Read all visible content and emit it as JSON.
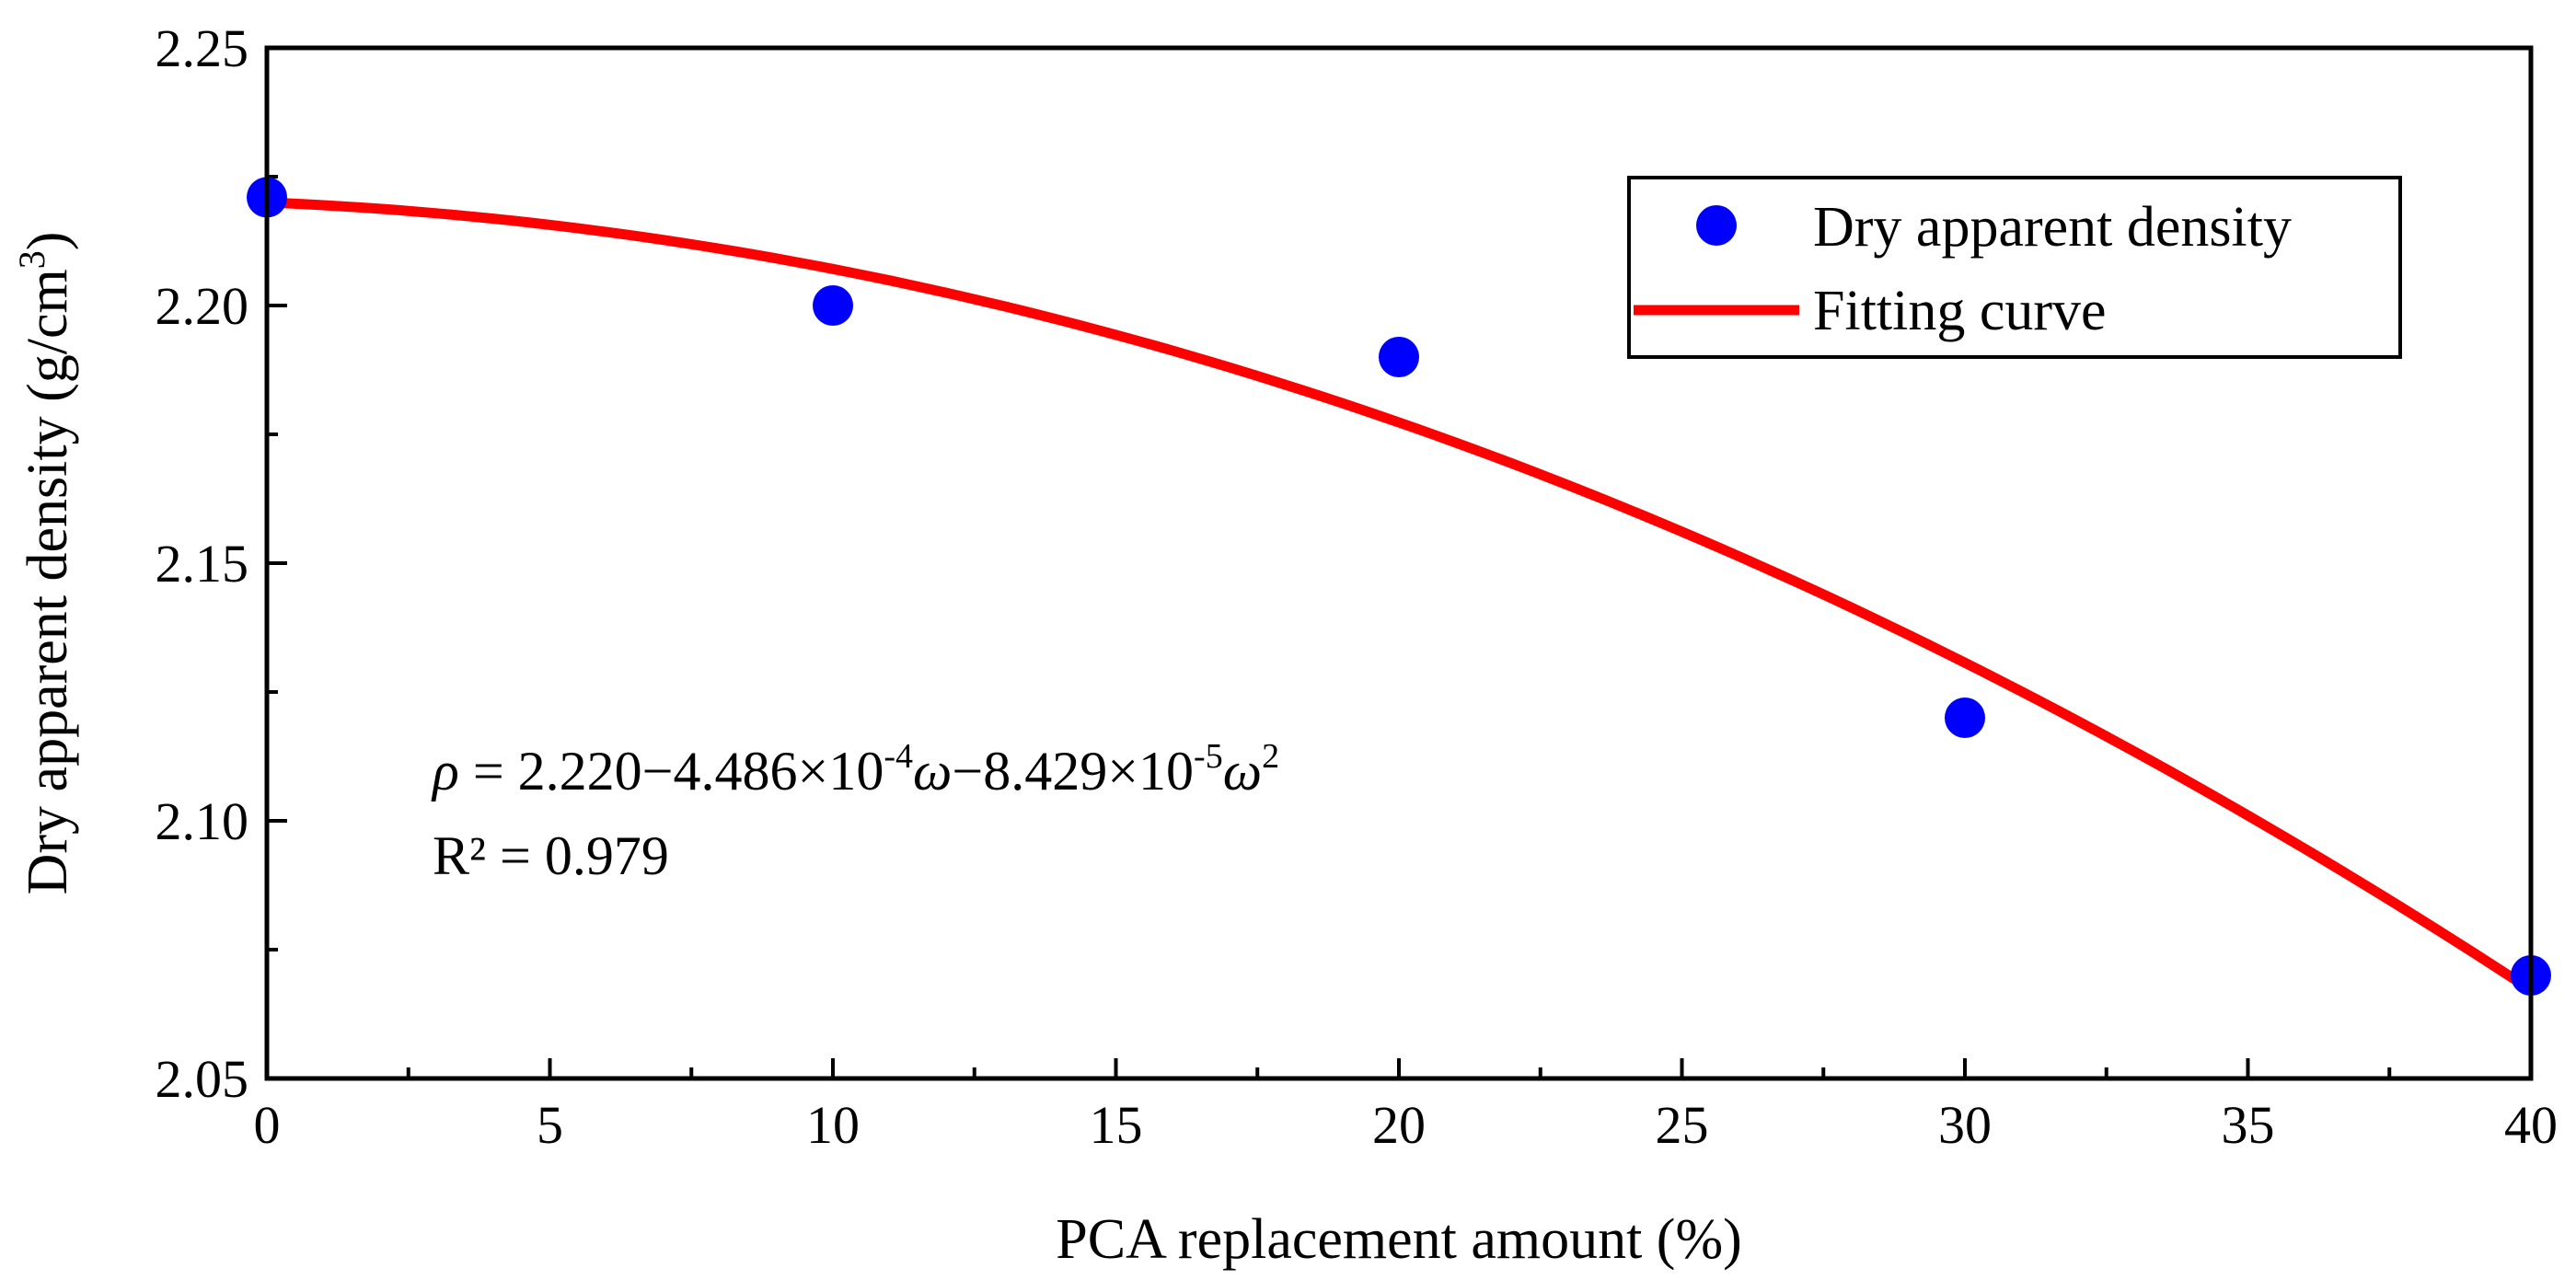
{
  "chart_data": {
    "type": "scatter",
    "title": "",
    "xlabel": "PCA replacement amount (%)",
    "ylabel_main": "Dry apparent density (g/cm",
    "ylabel_sup": "3",
    "ylabel_close": ")",
    "xlim": [
      0,
      40
    ],
    "ylim": [
      2.05,
      2.25
    ],
    "xticks": [
      0,
      5,
      10,
      15,
      20,
      25,
      30,
      35,
      40
    ],
    "xtick_labels": [
      "0",
      "5",
      "10",
      "15",
      "20",
      "25",
      "30",
      "35",
      "40"
    ],
    "yticks": [
      2.05,
      2.1,
      2.15,
      2.2,
      2.25
    ],
    "ytick_labels": [
      "2.05",
      "2.10",
      "2.15",
      "2.20",
      "2.25"
    ],
    "grid": false,
    "legend_position": "top-right",
    "series": [
      {
        "name": "Dry apparent density",
        "kind": "scatter",
        "color": "#0000ff",
        "x": [
          0,
          10,
          20,
          30,
          40
        ],
        "y": [
          2.221,
          2.2,
          2.19,
          2.12,
          2.07
        ]
      },
      {
        "name": "Fitting curve",
        "kind": "line",
        "color": "#ff0000",
        "coefficients": [
          2.22,
          -0.0004486,
          -8.429e-05
        ],
        "x_range": [
          0,
          40
        ]
      }
    ],
    "annotation": {
      "rho": "ρ",
      "eq_part1": " = 2.220−4.486×10",
      "exp1": "-4",
      "omega1": "ω",
      "eq_part2": "−8.429×10",
      "exp2": "-5",
      "omega2": "ω",
      "exp3": "2",
      "r2": "R² = 0.979"
    }
  }
}
